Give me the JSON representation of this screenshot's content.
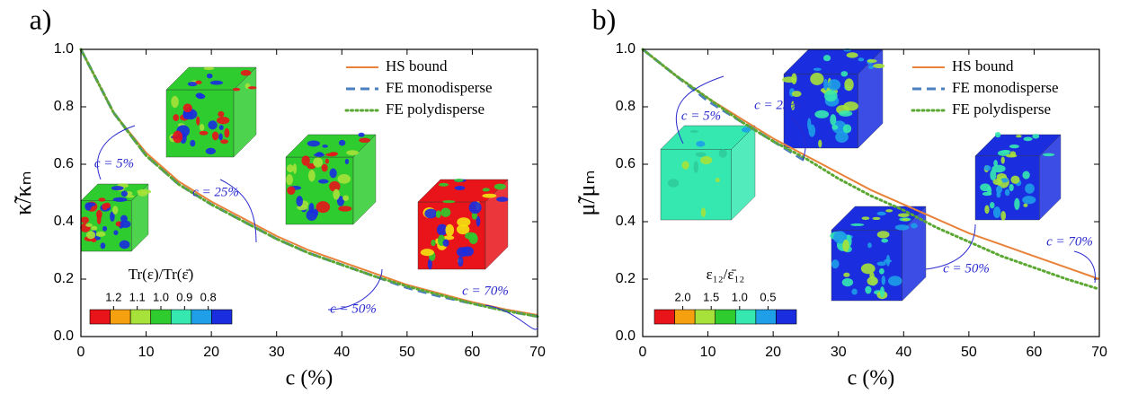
{
  "chart_data": [
    {
      "type": "line",
      "panel_label": "a)",
      "xlabel": "c (%)",
      "ylabel": "κ̃/κₘ",
      "x": [
        0,
        5,
        10,
        15,
        20,
        25,
        30,
        35,
        40,
        45,
        50,
        55,
        60,
        65,
        70
      ],
      "series": [
        {
          "name": "HS bound",
          "color": "#e8823a",
          "style": "solid",
          "values": [
            1.0,
            0.78,
            0.64,
            0.54,
            0.47,
            0.41,
            0.35,
            0.3,
            0.26,
            0.22,
            0.18,
            0.15,
            0.12,
            0.095,
            0.075
          ]
        },
        {
          "name": "FE monodisperse",
          "color": "#4a7fc0",
          "style": "dashed",
          "values": [
            1.0,
            0.78,
            0.63,
            0.53,
            0.46,
            0.4,
            0.34,
            0.29,
            0.25,
            0.21,
            0.17,
            0.14,
            0.115,
            0.09,
            0.07
          ]
        },
        {
          "name": "FE polydisperse",
          "color": "#5aa832",
          "style": "dotted",
          "values": [
            1.0,
            0.78,
            0.63,
            0.53,
            0.46,
            0.4,
            0.34,
            0.29,
            0.25,
            0.21,
            0.175,
            0.145,
            0.115,
            0.09,
            0.07
          ]
        }
      ],
      "xlim": [
        0,
        70
      ],
      "xticks": [
        0,
        10,
        20,
        30,
        40,
        50,
        60,
        70
      ],
      "ylim": [
        0,
        1
      ],
      "yticks": [
        {
          "value": 0,
          "label": "0.0"
        },
        0.2,
        0.4,
        0.6,
        0.8,
        {
          "value": 1,
          "label": "1.0"
        }
      ],
      "annotations": [
        "c = 5%",
        "c = 25%",
        "c = 50%",
        "c = 70%"
      ],
      "colorbar": {
        "title": "Tr(ε)/Tr(ε̄)",
        "ticks": [
          "1.2",
          "1.1",
          "1.0",
          "0.9",
          "0.8"
        ],
        "colors": [
          "#e8141a",
          "#f5a10f",
          "#a6e23a",
          "#2ecc2e",
          "#35e8b0",
          "#1e9fe8",
          "#1a2ee0"
        ]
      }
    },
    {
      "type": "line",
      "panel_label": "b)",
      "xlabel": "c (%)",
      "ylabel": "μ̃/μₘ",
      "x": [
        0,
        5,
        10,
        15,
        20,
        25,
        30,
        35,
        40,
        45,
        50,
        55,
        60,
        65,
        70
      ],
      "series": [
        {
          "name": "HS bound",
          "color": "#e8823a",
          "style": "solid",
          "values": [
            1.0,
            0.91,
            0.83,
            0.76,
            0.69,
            0.63,
            0.57,
            0.51,
            0.46,
            0.41,
            0.36,
            0.32,
            0.28,
            0.24,
            0.2
          ]
        },
        {
          "name": "FE monodisperse",
          "color": "#4a7fc0",
          "style": "dashed",
          "values": [
            1.0,
            0.91,
            0.82,
            0.75,
            0.68,
            0.61,
            null,
            null,
            null,
            null,
            null,
            null,
            null,
            null,
            null
          ]
        },
        {
          "name": "FE polydisperse",
          "color": "#5aa832",
          "style": "dotted",
          "values": [
            1.0,
            0.91,
            0.83,
            0.75,
            0.68,
            0.62,
            0.55,
            0.49,
            0.44,
            0.38,
            0.33,
            0.28,
            0.24,
            0.2,
            0.165
          ]
        }
      ],
      "xlim": [
        0,
        70
      ],
      "xticks": [
        0,
        10,
        20,
        30,
        40,
        50,
        60,
        70
      ],
      "ylim": [
        0,
        1
      ],
      "yticks": [
        {
          "value": 0,
          "label": "0.0"
        },
        0.2,
        0.4,
        0.6,
        0.8,
        {
          "value": 1,
          "label": "1.0"
        }
      ],
      "annotations": [
        "c = 5%",
        "c = 25%",
        "c = 50%",
        "c = 70%"
      ],
      "colorbar": {
        "title": "ε₁₂/ε̄₁₂",
        "ticks": [
          "2.0",
          "1.5",
          "1.0",
          "0.5"
        ],
        "colors": [
          "#e8141a",
          "#f5a10f",
          "#a6e23a",
          "#2ecc2e",
          "#35e8b0",
          "#1e9fe8",
          "#1a2ee0"
        ]
      }
    }
  ]
}
